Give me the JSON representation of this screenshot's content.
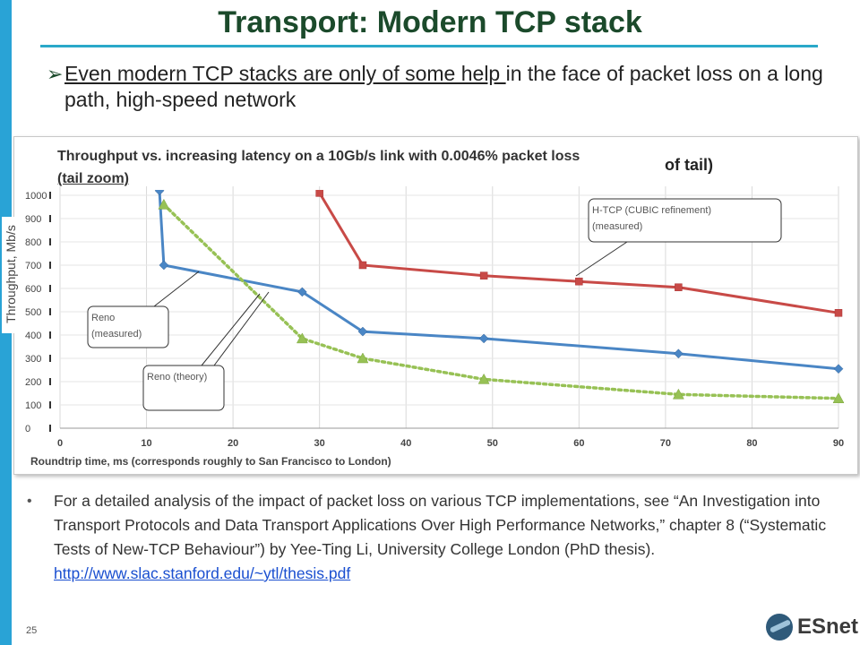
{
  "slide": {
    "title": "Transport: Modern TCP stack",
    "bullet1_underlined": "Even modern TCP stacks are only of some help ",
    "bullet1_rest": "in the face of packet loss on a long path, high-speed network",
    "bullet2_text": "For a detailed analysis of the impact of packet loss on various TCP implementations, see “An Investigation into Transport Protocols and Data Transport Applications Over High Performance Networks,” chapter 8 (“Systematic Tests of New-TCP Behaviour”) by Yee-Ting Li, University College London (PhD thesis). ",
    "bullet2_link": "http://www.slac.stanford.edu/~ytl/thesis.pdf",
    "page_number": "25",
    "logo_text": "ESnet",
    "colors": {
      "accent_bar": "#29a3d6",
      "title": "#1b4a2b",
      "link": "#1a4fd0"
    }
  },
  "chart_data": {
    "type": "line",
    "title": "Throughput vs. increasing latency on a 10Gb/s link with 0.0046% packet loss",
    "title_overlap_fragment": "of tail)",
    "subtitle": "(tail zoom)",
    "xlabel": "Roundtrip time, ms (corresponds  roughly to San Francisco to London)",
    "ylabel": "Throughput, Mb/s",
    "xlim": [
      0,
      90
    ],
    "ylim": [
      0,
      1000
    ],
    "xticks": [
      "0",
      "10",
      "20",
      "30",
      "40",
      "50",
      "60",
      "70",
      "80",
      "90"
    ],
    "yticks": [
      "0",
      "100",
      "200",
      "300",
      "400",
      "500",
      "600",
      "700",
      "800",
      "900",
      "1000"
    ],
    "grid": true,
    "series": [
      {
        "name": "H-TCP (CUBIC refinement) (measured)",
        "color": "#c84a47",
        "marker": "square",
        "style": "solid",
        "x": [
          30,
          35,
          49,
          60,
          71.5,
          90
        ],
        "y": [
          1010,
          700,
          655,
          630,
          605,
          495
        ]
      },
      {
        "name": "Reno (measured)",
        "color": "#4a86c5",
        "marker": "diamond",
        "style": "solid",
        "x": [
          11.5,
          12,
          28,
          35,
          49,
          71.5,
          90
        ],
        "y": [
          1020,
          700,
          585,
          415,
          385,
          320,
          255
        ]
      },
      {
        "name": "Reno (theory)",
        "color": "#97c155",
        "marker": "triangle",
        "style": "dotted",
        "x": [
          12,
          28,
          35,
          49,
          71.5,
          90
        ],
        "y": [
          960,
          385,
          300,
          210,
          145,
          128
        ]
      }
    ],
    "annotations": [
      "H-TCP (CUBIC refinement)\n(measured)",
      "Reno\n(measured)",
      "Reno (theory)"
    ]
  }
}
